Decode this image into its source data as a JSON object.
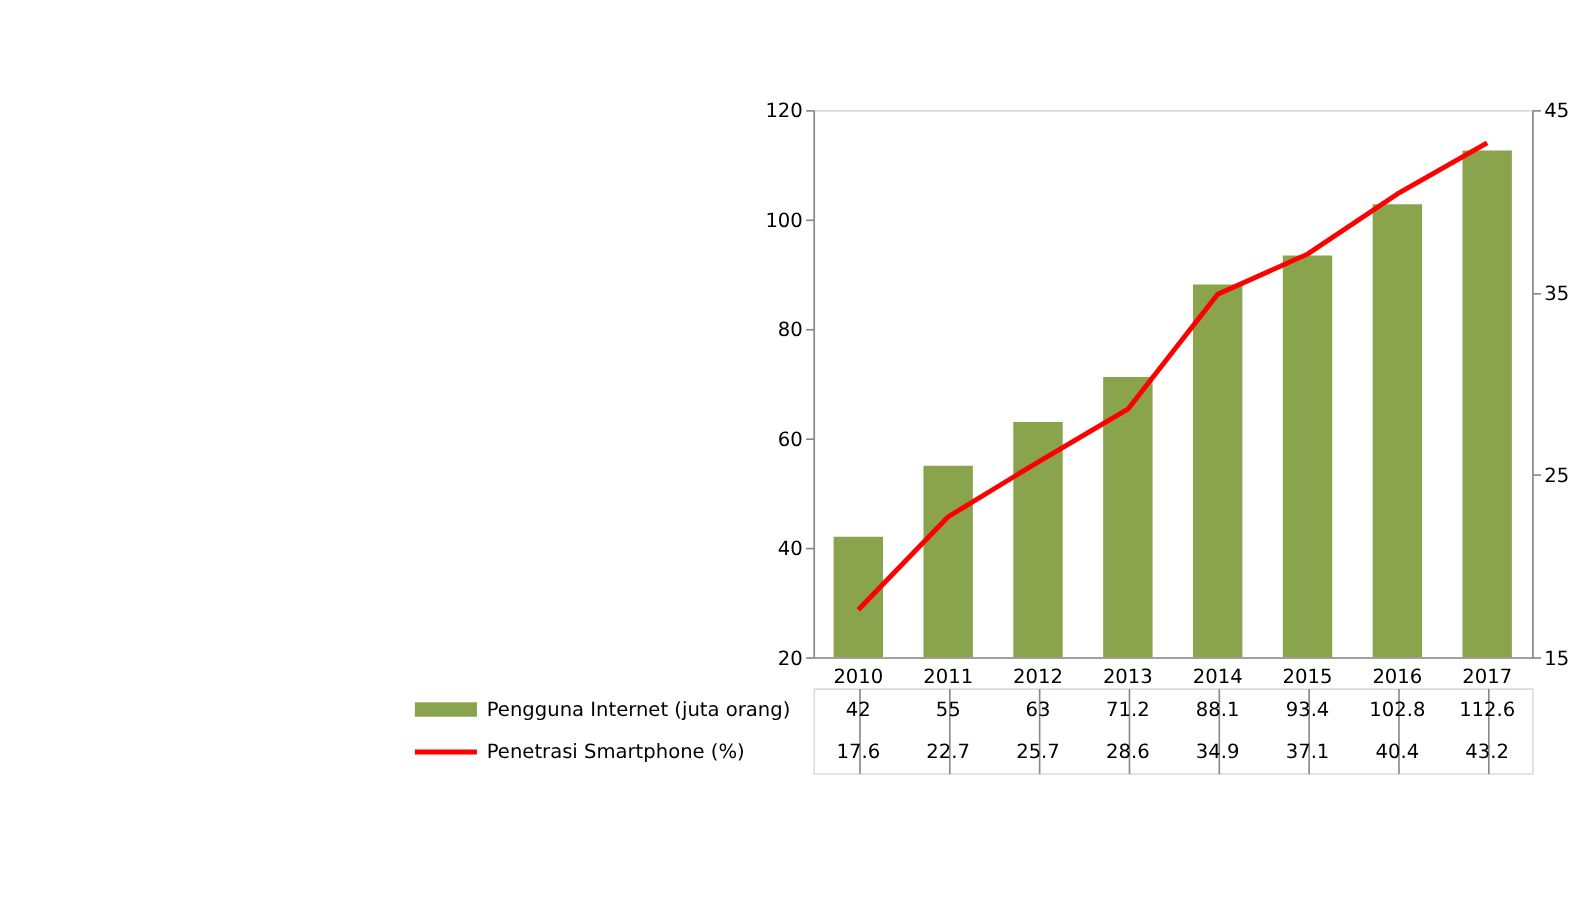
{
  "chart_data": {
    "type": "bar",
    "categories": [
      "2010",
      "2011",
      "2012",
      "2013",
      "2014",
      "2015",
      "2016",
      "2017"
    ],
    "series": [
      {
        "name": "Pengguna Internet (juta orang)",
        "color": "#8aa44e",
        "values": [
          42,
          55,
          63,
          71.2,
          88.1,
          93.4,
          102.8,
          112.6
        ]
      },
      {
        "name": "Penetrasi Smartphone (%)",
        "type": "line",
        "axis": "y2",
        "color": "#ff0000",
        "values": [
          17.6,
          22.7,
          25.7,
          28.6,
          34.9,
          37.1,
          40.4,
          43.2
        ]
      }
    ],
    "ylim": [
      20,
      120
    ],
    "yticks": [
      20,
      40,
      60,
      80,
      100,
      120
    ],
    "y2lim": [
      15,
      45
    ],
    "y2ticks": [
      15,
      25,
      35,
      45
    ],
    "data_labels": true,
    "legend": "bottom",
    "grid": false
  }
}
